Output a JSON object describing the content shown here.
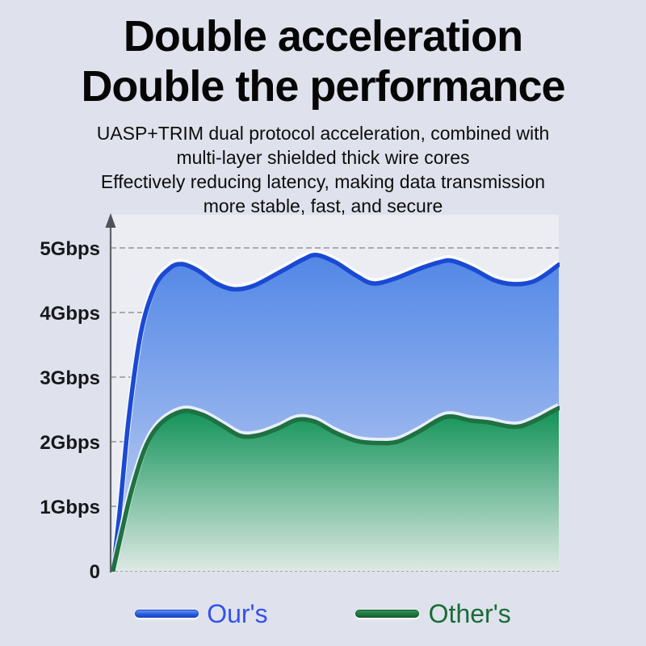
{
  "page": {
    "background": "#dfe2ec",
    "title_line1": "Double acceleration",
    "title_line2": "Double the performance",
    "subtitle_lines": [
      "UASP+TRIM dual protocol acceleration, combined with",
      "multi-layer shielded thick wire cores",
      "Effectively reducing latency, making data transmission",
      "more stable, fast, and secure"
    ]
  },
  "chart_data": {
    "type": "area",
    "title": "",
    "xlabel": "",
    "ylabel": "",
    "y_unit": "Gbps",
    "ylim": [
      0,
      5.6
    ],
    "grid": "horizontal-dashed",
    "legend_position": "bottom",
    "y_ticks": [
      {
        "label": "5Gbps",
        "value": 5
      },
      {
        "label": "4Gbps",
        "value": 4
      },
      {
        "label": "3Gbps",
        "value": 3
      },
      {
        "label": "2Gbps",
        "value": 2
      },
      {
        "label": "1Gbps",
        "value": 1
      },
      {
        "label": "0",
        "value": 0
      }
    ],
    "series": [
      {
        "name": "Our's",
        "stroke": "#1a4ad3",
        "fill_top": "#5287e6",
        "fill_bottom": "#c9d6f3",
        "points": [
          [
            0.005,
            0
          ],
          [
            0.02,
            0.9
          ],
          [
            0.041,
            2.4
          ],
          [
            0.068,
            3.7
          ],
          [
            0.099,
            4.4
          ],
          [
            0.131,
            4.68
          ],
          [
            0.159,
            4.75
          ],
          [
            0.195,
            4.65
          ],
          [
            0.236,
            4.45
          ],
          [
            0.276,
            4.36
          ],
          [
            0.321,
            4.42
          ],
          [
            0.384,
            4.65
          ],
          [
            0.429,
            4.82
          ],
          [
            0.459,
            4.89
          ],
          [
            0.501,
            4.78
          ],
          [
            0.546,
            4.58
          ],
          [
            0.586,
            4.45
          ],
          [
            0.636,
            4.53
          ],
          [
            0.69,
            4.68
          ],
          [
            0.735,
            4.78
          ],
          [
            0.762,
            4.8
          ],
          [
            0.807,
            4.68
          ],
          [
            0.856,
            4.5
          ],
          [
            0.897,
            4.44
          ],
          [
            0.939,
            4.47
          ],
          [
            0.969,
            4.58
          ],
          [
            1.0,
            4.74
          ]
        ]
      },
      {
        "name": "Other's",
        "stroke": "#1f7142",
        "fill_top": "#109257",
        "fill_bottom": "#dde9e3",
        "points": [
          [
            0.005,
            0
          ],
          [
            0.023,
            0.55
          ],
          [
            0.047,
            1.25
          ],
          [
            0.077,
            1.9
          ],
          [
            0.11,
            2.27
          ],
          [
            0.159,
            2.47
          ],
          [
            0.204,
            2.42
          ],
          [
            0.249,
            2.25
          ],
          [
            0.29,
            2.09
          ],
          [
            0.33,
            2.1
          ],
          [
            0.375,
            2.21
          ],
          [
            0.416,
            2.34
          ],
          [
            0.456,
            2.31
          ],
          [
            0.501,
            2.14
          ],
          [
            0.55,
            2.01
          ],
          [
            0.596,
            1.98
          ],
          [
            0.64,
            2.0
          ],
          [
            0.686,
            2.15
          ],
          [
            0.735,
            2.35
          ],
          [
            0.762,
            2.39
          ],
          [
            0.802,
            2.33
          ],
          [
            0.843,
            2.3
          ],
          [
            0.885,
            2.24
          ],
          [
            0.915,
            2.24
          ],
          [
            0.951,
            2.34
          ],
          [
            0.978,
            2.44
          ],
          [
            1.0,
            2.52
          ]
        ]
      }
    ]
  }
}
